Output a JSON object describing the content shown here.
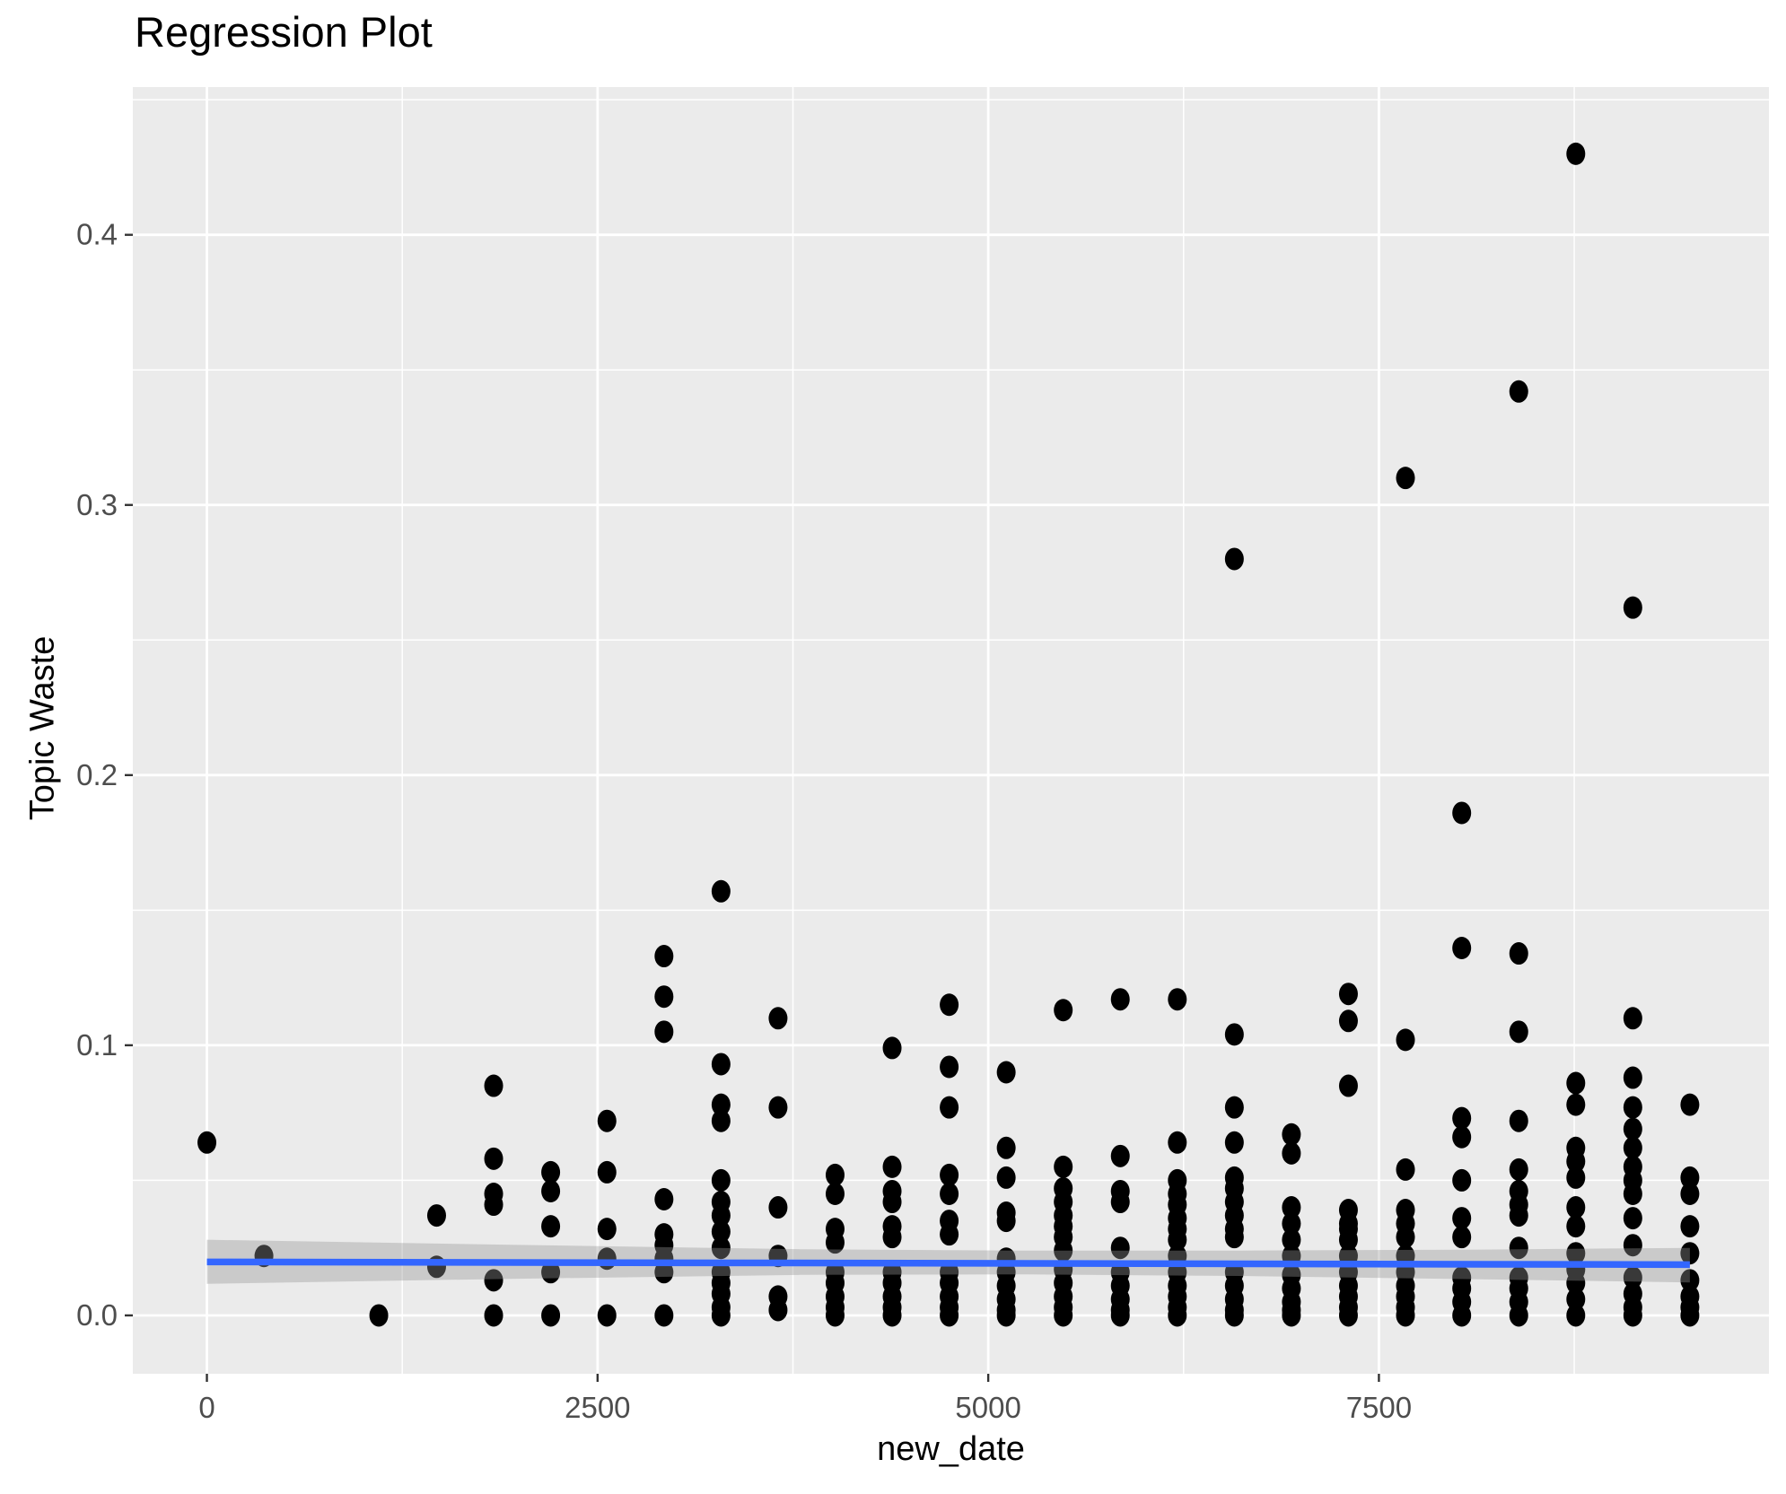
{
  "title": "Regression Plot",
  "x_axis": {
    "label": "new_date",
    "tick_labels": [
      "0",
      "2500",
      "5000",
      "7500"
    ],
    "tick_values": [
      0,
      2500,
      5000,
      7500
    ],
    "minor_ticks": [
      1250,
      3750,
      6250,
      8750
    ],
    "range": [
      -474,
      9996
    ]
  },
  "y_axis": {
    "label": "Topic Waste",
    "tick_labels": [
      "0.0",
      "0.1",
      "0.2",
      "0.3",
      "0.4"
    ],
    "tick_values": [
      0,
      0.1,
      0.2,
      0.3,
      0.4
    ],
    "minor_ticks": [
      0.05,
      0.15,
      0.25,
      0.35,
      0.45
    ],
    "range": [
      -0.0216,
      0.4547
    ]
  },
  "colors": {
    "panel_bg": "#EBEBEB",
    "grid": "#FFFFFF",
    "point": "#000000",
    "regression_line": "#3366FF",
    "ci_band": "rgba(151,151,151,0.38)",
    "tick_text": "#4D4D4D",
    "tick_mark": "#333333",
    "title_text": "#000000"
  },
  "chart_data": {
    "type": "scatter",
    "title": "Regression Plot",
    "xlabel": "new_date",
    "ylabel": "Topic Waste",
    "xlim": [
      -474,
      9996
    ],
    "ylim": [
      -0.0216,
      0.4547
    ],
    "grid": "on",
    "legend": "none",
    "clusters": [
      {
        "x": 0,
        "ys": [
          0.064
        ]
      },
      {
        "x": 365,
        "ys": [
          0.022
        ]
      },
      {
        "x": 1100,
        "ys": [
          0.0
        ]
      },
      {
        "x": 1470,
        "ys": [
          0.037,
          0.018
        ]
      },
      {
        "x": 1835,
        "ys": [
          0.085,
          0.058,
          0.045,
          0.041,
          0.013,
          0.0
        ]
      },
      {
        "x": 2200,
        "ys": [
          0.053,
          0.046,
          0.033,
          0.016,
          0.0
        ]
      },
      {
        "x": 2560,
        "ys": [
          0.072,
          0.053,
          0.032,
          0.021,
          0.0
        ]
      },
      {
        "x": 2925,
        "ys": [
          0.133,
          0.118,
          0.105,
          0.043,
          0.03,
          0.026,
          0.021,
          0.016,
          0.0
        ]
      },
      {
        "x": 3290,
        "ys": [
          0.157,
          0.093,
          0.078,
          0.072,
          0.05,
          0.042,
          0.037,
          0.031,
          0.025,
          0.016,
          0.012,
          0.008,
          0.003,
          0.0
        ]
      },
      {
        "x": 3655,
        "ys": [
          0.11,
          0.077,
          0.04,
          0.022,
          0.007,
          0.002
        ]
      },
      {
        "x": 4020,
        "ys": [
          0.052,
          0.045,
          0.032,
          0.027,
          0.016,
          0.012,
          0.007,
          0.003,
          0.0
        ]
      },
      {
        "x": 4385,
        "ys": [
          0.099,
          0.055,
          0.046,
          0.042,
          0.033,
          0.029,
          0.016,
          0.012,
          0.007,
          0.003,
          0.0
        ]
      },
      {
        "x": 4750,
        "ys": [
          0.115,
          0.092,
          0.077,
          0.052,
          0.045,
          0.035,
          0.03,
          0.016,
          0.012,
          0.007,
          0.003,
          0.0
        ]
      },
      {
        "x": 5115,
        "ys": [
          0.09,
          0.062,
          0.051,
          0.038,
          0.035,
          0.021,
          0.016,
          0.011,
          0.006,
          0.002,
          0.0
        ]
      },
      {
        "x": 5480,
        "ys": [
          0.113,
          0.055,
          0.047,
          0.042,
          0.037,
          0.033,
          0.029,
          0.024,
          0.017,
          0.012,
          0.007,
          0.003,
          0.0
        ]
      },
      {
        "x": 5845,
        "ys": [
          0.117,
          0.059,
          0.046,
          0.042,
          0.025,
          0.016,
          0.011,
          0.006,
          0.002,
          0.0
        ]
      },
      {
        "x": 6210,
        "ys": [
          0.117,
          0.064,
          0.05,
          0.045,
          0.041,
          0.036,
          0.032,
          0.028,
          0.022,
          0.016,
          0.011,
          0.007,
          0.003,
          0.0
        ]
      },
      {
        "x": 6575,
        "ys": [
          0.28,
          0.104,
          0.077,
          0.064,
          0.051,
          0.047,
          0.042,
          0.037,
          0.032,
          0.029,
          0.016,
          0.011,
          0.006,
          0.002,
          0.0
        ]
      },
      {
        "x": 6940,
        "ys": [
          0.067,
          0.06,
          0.04,
          0.034,
          0.028,
          0.022,
          0.015,
          0.01,
          0.005,
          0.002,
          0.0
        ]
      },
      {
        "x": 7305,
        "ys": [
          0.119,
          0.109,
          0.085,
          0.039,
          0.034,
          0.032,
          0.028,
          0.022,
          0.016,
          0.011,
          0.007,
          0.003,
          0.0
        ]
      },
      {
        "x": 7670,
        "ys": [
          0.31,
          0.102,
          0.054,
          0.039,
          0.034,
          0.029,
          0.022,
          0.016,
          0.011,
          0.007,
          0.003,
          0.0
        ]
      },
      {
        "x": 8030,
        "ys": [
          0.186,
          0.136,
          0.073,
          0.066,
          0.05,
          0.036,
          0.029,
          0.014,
          0.01,
          0.005,
          0.0
        ]
      },
      {
        "x": 8395,
        "ys": [
          0.342,
          0.134,
          0.105,
          0.072,
          0.054,
          0.046,
          0.041,
          0.037,
          0.025,
          0.014,
          0.01,
          0.005,
          0.0
        ]
      },
      {
        "x": 8760,
        "ys": [
          0.43,
          0.086,
          0.078,
          0.062,
          0.057,
          0.051,
          0.04,
          0.033,
          0.023,
          0.017,
          0.012,
          0.006,
          0.0
        ]
      },
      {
        "x": 9125,
        "ys": [
          0.262,
          0.11,
          0.088,
          0.077,
          0.069,
          0.062,
          0.055,
          0.05,
          0.045,
          0.036,
          0.026,
          0.014,
          0.008,
          0.003,
          0.0
        ]
      },
      {
        "x": 9490,
        "ys": [
          0.078,
          0.051,
          0.045,
          0.033,
          0.023,
          0.013,
          0.007,
          0.003,
          0.0
        ]
      }
    ],
    "regression_line": {
      "x": [
        0,
        9490
      ],
      "y": [
        0.0198,
        0.0188
      ]
    },
    "ci_band": [
      {
        "x": 0,
        "top": 0.028,
        "bottom": 0.0117
      },
      {
        "x": 1900,
        "top": 0.0262,
        "bottom": 0.0135
      },
      {
        "x": 3800,
        "top": 0.0245,
        "bottom": 0.015
      },
      {
        "x": 5200,
        "top": 0.024,
        "bottom": 0.0152
      },
      {
        "x": 6600,
        "top": 0.024,
        "bottom": 0.0146
      },
      {
        "x": 8000,
        "top": 0.0243,
        "bottom": 0.0135
      },
      {
        "x": 9490,
        "top": 0.025,
        "bottom": 0.0122
      }
    ]
  }
}
